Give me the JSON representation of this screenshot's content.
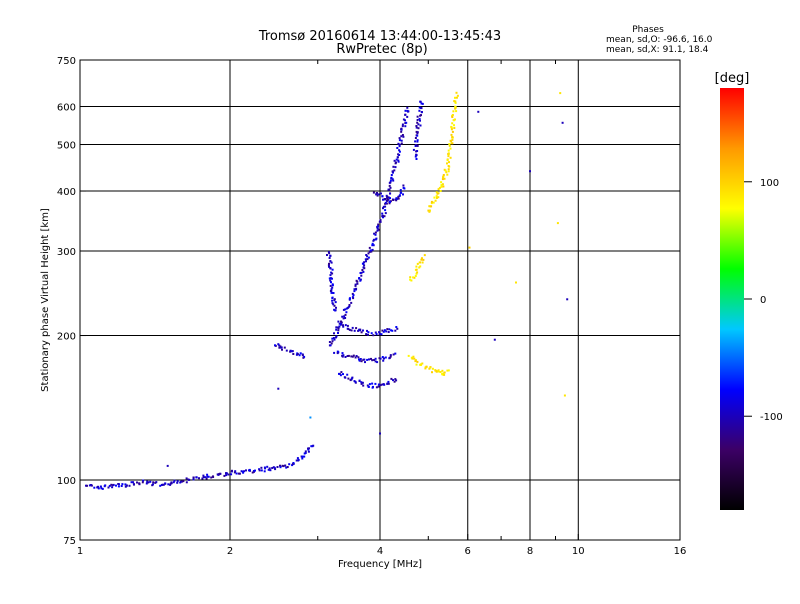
{
  "header": {
    "title_line1": "Tromsø 20160614 13:44:00-13:45:43",
    "title_line2": "RwPretec (8p)"
  },
  "phases": {
    "heading": "Phases",
    "line_o": "mean, sd,O: -96.6, 16.0",
    "line_x": "mean, sd,X:  91.1, 18.4"
  },
  "chart_data": {
    "type": "scatter",
    "title": "Tromsø 20160614 13:44:00-13:45:43",
    "subtitle": "RwPretec (8p)",
    "xlabel": "Frequency [MHz]",
    "ylabel": "Stationary phase Virtual Height [km]",
    "xscale": "log",
    "yscale": "log",
    "xlim": [
      1,
      16
    ],
    "ylim": [
      75,
      750
    ],
    "x_ticks": [
      1,
      2,
      4,
      6,
      8,
      10,
      16
    ],
    "x_tick_labels": [
      "1",
      "2",
      "4",
      "6",
      "8",
      "10",
      "16"
    ],
    "x_minor_ticks": [
      3,
      5,
      7,
      9
    ],
    "y_ticks": [
      75,
      100,
      200,
      300,
      400,
      500,
      600,
      750
    ],
    "y_tick_labels": [
      "75",
      "100",
      "200",
      "300",
      "400",
      "500",
      "600",
      "750"
    ],
    "grid": true,
    "colorbar": {
      "label": "[deg]",
      "range": [
        -180,
        180
      ],
      "ticks": [
        100,
        0,
        -100
      ],
      "tick_labels": [
        "100",
        "0",
        "-100"
      ],
      "colors": [
        "#000000",
        "#3c0066",
        "#0000ff",
        "#00c8ff",
        "#00ff00",
        "#ffff00",
        "#ff9900",
        "#ff0000"
      ]
    },
    "series": [
      {
        "phase_deg": -96.6,
        "segments": [
          [
            [
              1.03,
              98
            ],
            [
              1.08,
              96
            ],
            [
              1.15,
              97
            ],
            [
              1.25,
              98
            ],
            [
              1.35,
              99
            ],
            [
              1.45,
              98
            ],
            [
              1.55,
              99
            ],
            [
              1.65,
              100
            ],
            [
              1.75,
              101
            ],
            [
              1.85,
              102
            ],
            [
              1.95,
              103
            ],
            [
              2.05,
              104
            ],
            [
              2.15,
              104
            ],
            [
              2.3,
              105
            ],
            [
              2.45,
              106
            ],
            [
              2.6,
              107
            ],
            [
              2.75,
              110
            ],
            [
              2.85,
              115
            ],
            [
              2.95,
              118
            ]
          ],
          [
            [
              2.45,
              192
            ],
            [
              2.55,
              188
            ],
            [
              2.65,
              185
            ],
            [
              2.75,
              182
            ],
            [
              2.85,
              179
            ]
          ],
          [
            [
              3.15,
              190
            ],
            [
              3.25,
              200
            ],
            [
              3.35,
              215
            ],
            [
              3.45,
              230
            ],
            [
              3.55,
              248
            ],
            [
              3.65,
              265
            ],
            [
              3.75,
              285
            ],
            [
              3.85,
              305
            ],
            [
              3.95,
              330
            ],
            [
              4.05,
              355
            ],
            [
              4.15,
              385
            ],
            [
              4.25,
              430
            ],
            [
              4.35,
              480
            ],
            [
              4.45,
              540
            ],
            [
              4.55,
              600
            ]
          ],
          [
            [
              3.3,
              168
            ],
            [
              3.45,
              163
            ],
            [
              3.6,
              160
            ],
            [
              3.75,
              158
            ],
            [
              3.9,
              157
            ],
            [
              4.05,
              158
            ],
            [
              4.2,
              160
            ],
            [
              4.35,
              163
            ]
          ],
          [
            [
              3.25,
              185
            ],
            [
              3.4,
              182
            ],
            [
              3.55,
              180
            ],
            [
              3.7,
              178
            ],
            [
              3.85,
              177
            ],
            [
              4.0,
              178
            ],
            [
              4.15,
              180
            ],
            [
              4.3,
              182
            ]
          ],
          [
            [
              3.3,
              212
            ],
            [
              3.45,
              208
            ],
            [
              3.6,
              205
            ],
            [
              3.75,
              203
            ],
            [
              3.9,
              202
            ],
            [
              4.05,
              203
            ],
            [
              4.2,
              205
            ],
            [
              4.35,
              208
            ]
          ],
          [
            [
              3.15,
              300
            ],
            [
              3.18,
              280
            ],
            [
              3.2,
              260
            ],
            [
              3.22,
              240
            ],
            [
              3.25,
              222
            ]
          ],
          [
            [
              3.9,
              400
            ],
            [
              4.0,
              392
            ],
            [
              4.1,
              385
            ],
            [
              4.2,
              380
            ],
            [
              4.3,
              385
            ],
            [
              4.4,
              395
            ],
            [
              4.5,
              410
            ]
          ],
          [
            [
              4.7,
              470
            ],
            [
              4.75,
              520
            ],
            [
              4.8,
              570
            ],
            [
              4.85,
              620
            ]
          ]
        ]
      },
      {
        "phase_deg": 91.1,
        "segments": [
          [
            [
              4.6,
              182
            ],
            [
              4.75,
              176
            ],
            [
              4.9,
              172
            ],
            [
              5.05,
              170
            ],
            [
              5.2,
              168
            ],
            [
              5.35,
              167
            ],
            [
              5.5,
              169
            ]
          ],
          [
            [
              4.6,
              260
            ],
            [
              4.7,
              268
            ],
            [
              4.8,
              280
            ],
            [
              4.9,
              295
            ]
          ],
          [
            [
              5.0,
              360
            ],
            [
              5.1,
              375
            ],
            [
              5.2,
              390
            ],
            [
              5.3,
              405
            ],
            [
              5.4,
              425
            ],
            [
              5.5,
              460
            ],
            [
              5.55,
              500
            ],
            [
              5.6,
              540
            ],
            [
              5.65,
              590
            ],
            [
              5.7,
              640
            ]
          ]
        ]
      }
    ],
    "isolated_points": [
      {
        "x": 9.2,
        "y": 640,
        "phase_deg": 90
      },
      {
        "x": 9.3,
        "y": 555,
        "phase_deg": -100
      },
      {
        "x": 8.0,
        "y": 440,
        "phase_deg": -100
      },
      {
        "x": 6.3,
        "y": 585,
        "phase_deg": -100
      },
      {
        "x": 6.8,
        "y": 196,
        "phase_deg": -100
      },
      {
        "x": 7.5,
        "y": 258,
        "phase_deg": 90
      },
      {
        "x": 9.4,
        "y": 150,
        "phase_deg": 90
      },
      {
        "x": 9.5,
        "y": 238,
        "phase_deg": -100
      },
      {
        "x": 9.1,
        "y": 343,
        "phase_deg": 90
      },
      {
        "x": 4.0,
        "y": 125,
        "phase_deg": -100
      },
      {
        "x": 2.5,
        "y": 155,
        "phase_deg": -100
      },
      {
        "x": 1.5,
        "y": 107,
        "phase_deg": -100
      },
      {
        "x": 6.05,
        "y": 305,
        "phase_deg": 100
      },
      {
        "x": 2.9,
        "y": 135,
        "phase_deg": -40
      }
    ]
  }
}
